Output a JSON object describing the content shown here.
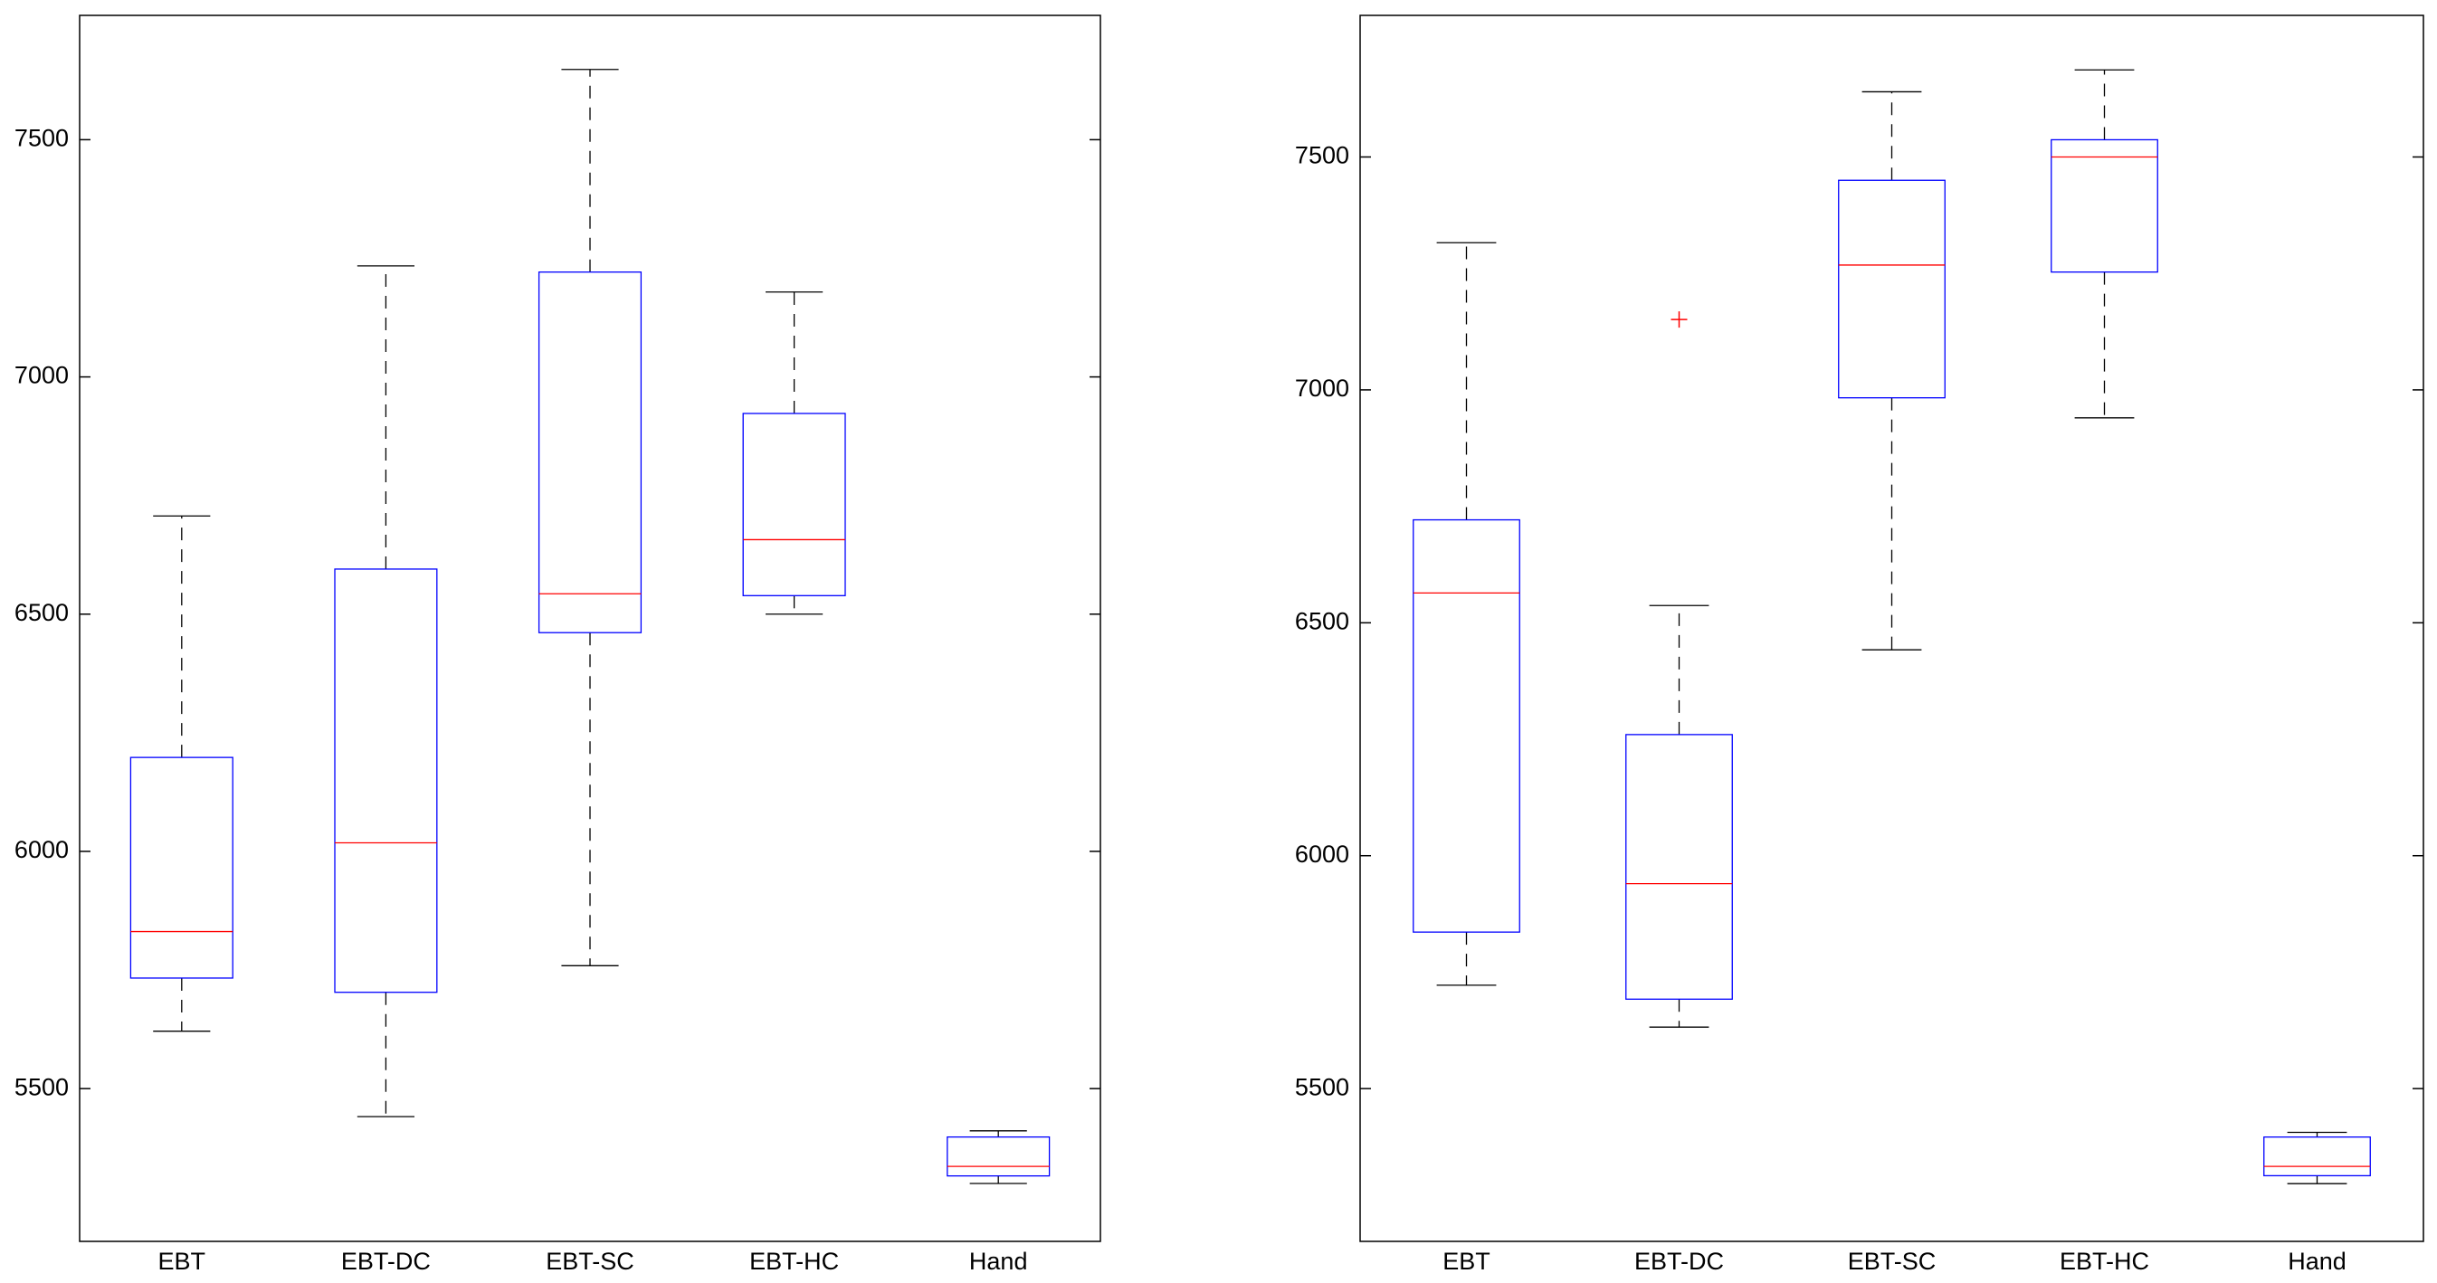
{
  "chart_data": [
    {
      "type": "box",
      "categories": [
        "EBT",
        "EBT-DC",
        "EBT-SC",
        "EBT-HC",
        "Hand"
      ],
      "whisker_low": [
        5621,
        5441,
        5759,
        6500,
        5300
      ],
      "q1": [
        5733,
        5703,
        6461,
        6539,
        5316
      ],
      "median": [
        5831,
        6018,
        6543,
        6657,
        5336
      ],
      "q3": [
        6198,
        6595,
        7221,
        6923,
        5398
      ],
      "whisker_high": [
        6707,
        7234,
        7648,
        7179,
        5411
      ],
      "outliers": [
        [],
        [],
        [],
        [],
        []
      ],
      "box_color": "#0000ff",
      "median_color": "#ff0000",
      "whisker_color": "#000000",
      "outlier_color": "#ff0000",
      "ylim": [
        5178,
        7762
      ],
      "yticks": [
        5500,
        6000,
        6500,
        7000,
        7500
      ]
    },
    {
      "type": "box",
      "categories": [
        "EBT",
        "EBT-DC",
        "EBT-SC",
        "EBT-HC",
        "Hand"
      ],
      "whisker_low": [
        5722,
        5632,
        6442,
        6940,
        5296
      ],
      "q1": [
        5836,
        5692,
        6983,
        7253,
        5313
      ],
      "median": [
        6564,
        5940,
        7268,
        7500,
        5333
      ],
      "q3": [
        6721,
        6260,
        7450,
        7537,
        5396
      ],
      "whisker_high": [
        7316,
        6537,
        7640,
        7687,
        5406
      ],
      "outliers": [
        [],
        [
          7151
        ],
        [],
        [],
        []
      ],
      "box_color": "#0000ff",
      "median_color": "#ff0000",
      "whisker_color": "#000000",
      "outlier_color": "#ff0000",
      "ylim": [
        5172,
        7804
      ],
      "yticks": [
        5500,
        6000,
        6500,
        7000,
        7500
      ]
    }
  ]
}
